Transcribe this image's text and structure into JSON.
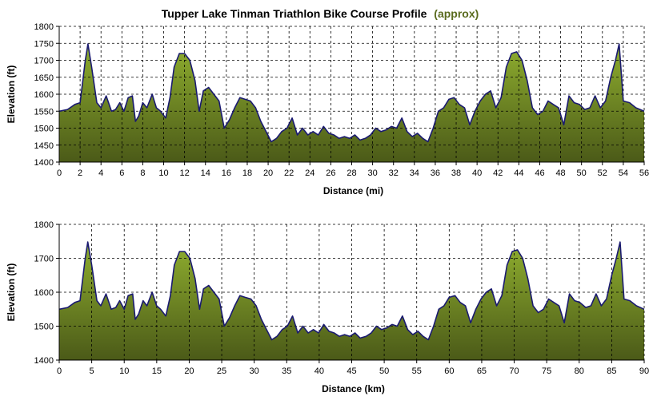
{
  "title": "Tupper Lake Tinman Triathlon Bike Course Profile",
  "title_accent": "(approx)",
  "colors": {
    "area_top": "#8fae2f",
    "area_bottom": "#4b5a18",
    "line": "#1a1a70",
    "grid": "#000000",
    "accent_text": "#5a6b1e"
  },
  "chart_data": [
    {
      "type": "area",
      "xlabel": "Distance (mi)",
      "ylabel": "Elevation (ft)",
      "xlim": [
        0,
        56
      ],
      "ylim": [
        1400,
        1800
      ],
      "x_ticks": [
        0,
        2,
        4,
        6,
        8,
        10,
        12,
        14,
        16,
        18,
        20,
        22,
        24,
        26,
        28,
        30,
        32,
        34,
        36,
        38,
        40,
        42,
        44,
        46,
        48,
        50,
        52,
        54,
        56
      ],
      "y_ticks": [
        1400,
        1450,
        1500,
        1550,
        1600,
        1650,
        1700,
        1750,
        1800
      ],
      "grid": true,
      "x": [
        0,
        0.8,
        1.5,
        2.0,
        2.5,
        2.75,
        3.1,
        3.6,
        4.0,
        4.5,
        5.0,
        5.4,
        5.8,
        6.2,
        6.6,
        7.0,
        7.3,
        7.6,
        8.0,
        8.4,
        8.9,
        9.3,
        9.7,
        10.2,
        10.6,
        11.0,
        11.5,
        12.0,
        12.5,
        13.0,
        13.4,
        13.8,
        14.3,
        14.8,
        15.3,
        15.8,
        16.3,
        16.8,
        17.3,
        17.8,
        18.3,
        18.8,
        19.3,
        19.8,
        20.3,
        20.8,
        21.3,
        21.8,
        22.3,
        22.8,
        23.3,
        23.8,
        24.3,
        24.8,
        25.3,
        25.8,
        26.3,
        26.8,
        27.3,
        27.8,
        28.3,
        28.8,
        29.3,
        29.8,
        30.3,
        30.8,
        31.3,
        31.8,
        32.3,
        32.8,
        33.3,
        33.8,
        34.3,
        34.8,
        35.3,
        35.8,
        36.3,
        36.8,
        37.3,
        37.8,
        38.3,
        38.8,
        39.3,
        39.8,
        40.3,
        40.8,
        41.3,
        41.8,
        42.3,
        42.8,
        43.3,
        43.8,
        44.3,
        44.8,
        45.3,
        45.8,
        46.3,
        46.8,
        47.3,
        47.8,
        48.3,
        48.8,
        49.3,
        49.8,
        50.3,
        50.8,
        51.3,
        51.8,
        52.3,
        52.8,
        53.25,
        53.6,
        54.0,
        54.6,
        55.2,
        56.0
      ],
      "y": [
        1550,
        1555,
        1570,
        1575,
        1700,
        1748,
        1680,
        1575,
        1560,
        1595,
        1550,
        1555,
        1575,
        1550,
        1590,
        1595,
        1520,
        1535,
        1575,
        1560,
        1600,
        1560,
        1550,
        1530,
        1590,
        1680,
        1720,
        1720,
        1700,
        1640,
        1550,
        1610,
        1620,
        1600,
        1580,
        1500,
        1525,
        1560,
        1590,
        1585,
        1580,
        1560,
        1520,
        1490,
        1460,
        1470,
        1490,
        1500,
        1530,
        1480,
        1500,
        1480,
        1490,
        1480,
        1505,
        1485,
        1480,
        1470,
        1475,
        1470,
        1480,
        1465,
        1470,
        1480,
        1500,
        1490,
        1495,
        1505,
        1500,
        1530,
        1490,
        1475,
        1485,
        1470,
        1460,
        1500,
        1550,
        1560,
        1585,
        1590,
        1570,
        1560,
        1510,
        1550,
        1580,
        1600,
        1610,
        1560,
        1590,
        1680,
        1720,
        1725,
        1700,
        1640,
        1560,
        1540,
        1550,
        1580,
        1570,
        1560,
        1510,
        1595,
        1575,
        1570,
        1555,
        1560,
        1595,
        1560,
        1580,
        1650,
        1700,
        1748,
        1580,
        1575,
        1560,
        1550
      ]
    },
    {
      "type": "area",
      "xlabel": "Distance (km)",
      "ylabel": "Elevation (ft)",
      "xlim": [
        0,
        90
      ],
      "ylim": [
        1400,
        1800
      ],
      "x_ticks": [
        0,
        5,
        10,
        15,
        20,
        25,
        30,
        35,
        40,
        45,
        50,
        55,
        60,
        65,
        70,
        75,
        80,
        85,
        90
      ],
      "y_ticks": [
        1400,
        1500,
        1600,
        1700,
        1800
      ],
      "grid": true,
      "x": [
        0,
        1.3,
        2.4,
        3.2,
        4.0,
        4.4,
        5.0,
        5.8,
        6.4,
        7.2,
        8.0,
        8.7,
        9.3,
        10.0,
        10.6,
        11.3,
        11.7,
        12.2,
        12.9,
        13.5,
        14.3,
        15.0,
        15.6,
        16.4,
        17.1,
        17.7,
        18.5,
        19.3,
        20.1,
        20.9,
        21.6,
        22.2,
        23.0,
        23.8,
        24.6,
        25.4,
        26.2,
        27.0,
        27.8,
        28.6,
        29.5,
        30.3,
        31.1,
        31.9,
        32.7,
        33.5,
        34.3,
        35.1,
        35.9,
        36.7,
        37.5,
        38.3,
        39.1,
        39.9,
        40.7,
        41.5,
        42.3,
        43.1,
        43.9,
        44.7,
        45.5,
        46.3,
        47.2,
        48.0,
        48.8,
        49.6,
        50.4,
        51.2,
        52.0,
        52.8,
        53.6,
        54.4,
        55.2,
        56.0,
        56.8,
        57.6,
        58.4,
        59.2,
        60.0,
        60.9,
        61.7,
        62.5,
        63.3,
        64.1,
        64.9,
        65.7,
        66.5,
        67.3,
        68.1,
        68.9,
        69.7,
        70.5,
        71.3,
        72.1,
        72.9,
        73.7,
        74.5,
        75.3,
        76.1,
        76.9,
        77.7,
        78.5,
        79.3,
        80.1,
        81.0,
        81.8,
        82.6,
        83.4,
        84.2,
        85.0,
        85.7,
        86.3,
        86.9,
        87.8,
        88.8,
        90.0
      ],
      "y": [
        1550,
        1555,
        1570,
        1575,
        1700,
        1748,
        1680,
        1575,
        1560,
        1595,
        1550,
        1555,
        1575,
        1550,
        1590,
        1595,
        1520,
        1535,
        1575,
        1560,
        1600,
        1560,
        1550,
        1530,
        1590,
        1680,
        1720,
        1720,
        1700,
        1640,
        1550,
        1610,
        1620,
        1600,
        1580,
        1500,
        1525,
        1560,
        1590,
        1585,
        1580,
        1560,
        1520,
        1490,
        1460,
        1470,
        1490,
        1500,
        1530,
        1480,
        1500,
        1480,
        1490,
        1480,
        1505,
        1485,
        1480,
        1470,
        1475,
        1470,
        1480,
        1465,
        1470,
        1480,
        1500,
        1490,
        1495,
        1505,
        1500,
        1530,
        1490,
        1475,
        1485,
        1470,
        1460,
        1500,
        1550,
        1560,
        1585,
        1590,
        1570,
        1560,
        1510,
        1550,
        1580,
        1600,
        1610,
        1560,
        1590,
        1680,
        1720,
        1725,
        1700,
        1640,
        1560,
        1540,
        1550,
        1580,
        1570,
        1560,
        1510,
        1595,
        1575,
        1570,
        1555,
        1560,
        1595,
        1560,
        1580,
        1650,
        1700,
        1748,
        1580,
        1575,
        1560,
        1550
      ]
    }
  ]
}
